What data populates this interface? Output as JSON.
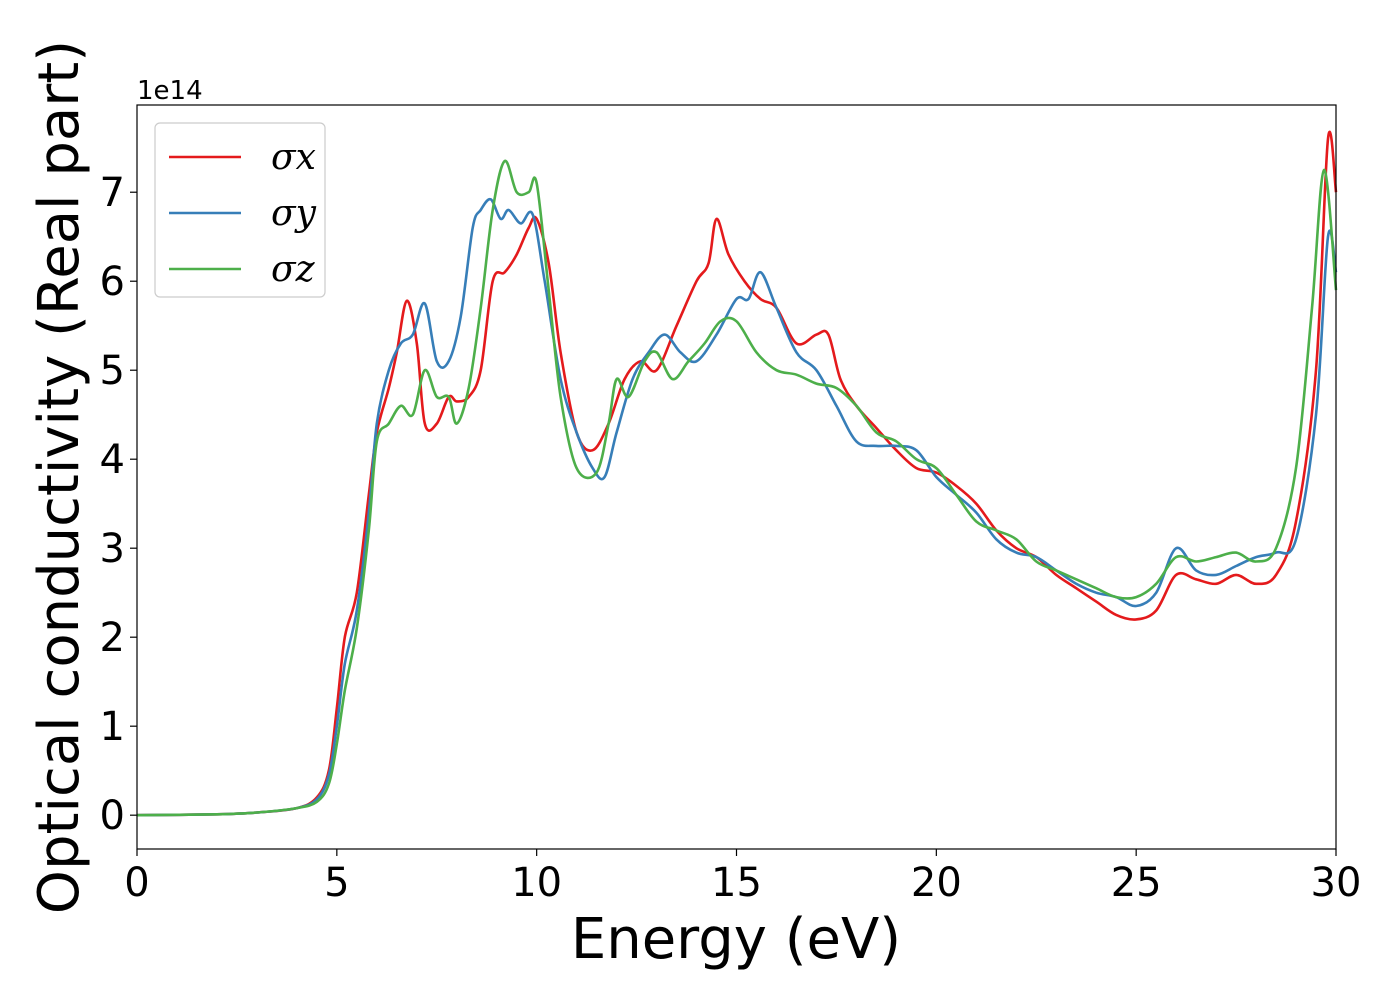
{
  "chart_data": {
    "type": "line",
    "title": "",
    "xlabel": "Energy (eV)",
    "ylabel": "Optical conductivity (Real part)",
    "y_scale_label": "1e14",
    "xlim": [
      0,
      30
    ],
    "ylim": [
      -0.38,
      7.98
    ],
    "xticks": [
      "0",
      "5",
      "10",
      "15",
      "20",
      "25",
      "30"
    ],
    "xtick_values": [
      0,
      5,
      10,
      15,
      20,
      25,
      30
    ],
    "yticks": [
      "0",
      "1",
      "2",
      "3",
      "4",
      "5",
      "6",
      "7"
    ],
    "ytick_values": [
      0,
      1,
      2,
      3,
      4,
      5,
      6,
      7
    ],
    "grid": false,
    "legend_position": "upper-left",
    "series": [
      {
        "name": "σx",
        "color": "#e41a1c",
        "x": [
          0,
          2,
          3,
          4,
          4.5,
          4.8,
          5.0,
          5.2,
          5.5,
          5.8,
          6.0,
          6.3,
          6.5,
          6.75,
          7.0,
          7.2,
          7.5,
          7.8,
          8.0,
          8.3,
          8.6,
          8.9,
          9.2,
          9.5,
          9.8,
          10.0,
          10.3,
          10.6,
          11.0,
          11.4,
          11.8,
          12.2,
          12.6,
          13.0,
          13.5,
          14.0,
          14.3,
          14.5,
          14.8,
          15.2,
          15.6,
          16.0,
          16.5,
          17.0,
          17.3,
          17.6,
          18.0,
          18.5,
          19.0,
          19.5,
          20.0,
          20.5,
          21.0,
          21.5,
          22.0,
          22.5,
          23.0,
          23.5,
          24.0,
          24.5,
          25.0,
          25.5,
          26.0,
          26.5,
          27.0,
          27.5,
          28.0,
          28.5,
          29.0,
          29.5,
          29.8,
          30.0
        ],
        "y": [
          0,
          0.01,
          0.03,
          0.08,
          0.2,
          0.5,
          1.2,
          2.0,
          2.5,
          3.6,
          4.3,
          4.8,
          5.2,
          5.78,
          5.3,
          4.4,
          4.4,
          4.7,
          4.65,
          4.7,
          5.0,
          6.0,
          6.1,
          6.3,
          6.6,
          6.7,
          6.2,
          5.2,
          4.3,
          4.1,
          4.4,
          4.9,
          5.1,
          5.0,
          5.5,
          6.0,
          6.2,
          6.7,
          6.3,
          6.0,
          5.8,
          5.7,
          5.3,
          5.4,
          5.4,
          4.9,
          4.6,
          4.35,
          4.1,
          3.9,
          3.85,
          3.7,
          3.5,
          3.2,
          3.0,
          2.9,
          2.7,
          2.55,
          2.4,
          2.25,
          2.2,
          2.3,
          2.7,
          2.65,
          2.6,
          2.7,
          2.6,
          2.7,
          3.3,
          5.0,
          7.6,
          7.0
        ]
      },
      {
        "name": "σy",
        "color": "#377eb8",
        "x": [
          0,
          2,
          3,
          4,
          4.5,
          4.8,
          5.0,
          5.2,
          5.5,
          5.8,
          6.0,
          6.3,
          6.6,
          6.9,
          7.2,
          7.5,
          7.8,
          8.1,
          8.4,
          8.6,
          8.85,
          9.1,
          9.3,
          9.6,
          9.9,
          10.2,
          10.6,
          11.0,
          11.4,
          11.7,
          12.0,
          12.4,
          12.8,
          13.2,
          13.6,
          14.0,
          14.5,
          15.0,
          15.3,
          15.6,
          16.0,
          16.5,
          17.0,
          17.5,
          18.0,
          18.5,
          19.0,
          19.5,
          20.0,
          20.5,
          21.0,
          21.5,
          22.0,
          22.5,
          23.0,
          23.5,
          24.0,
          24.5,
          25.0,
          25.5,
          26.0,
          26.5,
          27.0,
          27.5,
          28.0,
          28.5,
          29.0,
          29.5,
          29.8,
          30.0
        ],
        "y": [
          0,
          0.01,
          0.03,
          0.08,
          0.18,
          0.45,
          1.0,
          1.7,
          2.3,
          3.4,
          4.4,
          5.0,
          5.3,
          5.4,
          5.75,
          5.1,
          5.1,
          5.6,
          6.6,
          6.8,
          6.92,
          6.7,
          6.8,
          6.65,
          6.75,
          6.0,
          4.9,
          4.3,
          3.9,
          3.8,
          4.3,
          4.9,
          5.2,
          5.4,
          5.2,
          5.1,
          5.4,
          5.8,
          5.8,
          6.1,
          5.7,
          5.2,
          5.0,
          4.6,
          4.2,
          4.15,
          4.15,
          4.1,
          3.8,
          3.6,
          3.4,
          3.1,
          2.95,
          2.9,
          2.75,
          2.6,
          2.5,
          2.45,
          2.35,
          2.5,
          3.0,
          2.75,
          2.7,
          2.8,
          2.9,
          2.95,
          3.1,
          4.5,
          6.5,
          6.1
        ]
      },
      {
        "name": "σz",
        "color": "#4daf4a",
        "x": [
          0,
          2,
          3,
          4,
          4.5,
          4.8,
          5.0,
          5.2,
          5.5,
          5.8,
          6.0,
          6.3,
          6.6,
          6.9,
          7.2,
          7.5,
          7.8,
          8.0,
          8.3,
          8.6,
          8.9,
          9.2,
          9.5,
          9.8,
          10.0,
          10.3,
          10.6,
          11.0,
          11.5,
          11.8,
          12.0,
          12.3,
          12.7,
          13.0,
          13.4,
          13.8,
          14.2,
          14.6,
          15.0,
          15.5,
          16.0,
          16.5,
          17.0,
          17.5,
          18.0,
          18.5,
          19.0,
          19.5,
          20.0,
          20.5,
          21.0,
          21.5,
          22.0,
          22.5,
          23.0,
          23.5,
          24.0,
          24.5,
          25.0,
          25.5,
          26.0,
          26.5,
          27.0,
          27.5,
          28.0,
          28.5,
          29.0,
          29.4,
          29.7,
          30.0
        ],
        "y": [
          0,
          0.01,
          0.03,
          0.08,
          0.15,
          0.35,
          0.8,
          1.4,
          2.1,
          3.2,
          4.2,
          4.4,
          4.6,
          4.5,
          5.0,
          4.7,
          4.7,
          4.4,
          4.8,
          5.7,
          6.8,
          7.35,
          7.0,
          7.0,
          7.1,
          5.9,
          4.7,
          3.9,
          3.85,
          4.4,
          4.9,
          4.7,
          5.1,
          5.2,
          4.9,
          5.1,
          5.3,
          5.55,
          5.55,
          5.2,
          5.0,
          4.95,
          4.85,
          4.8,
          4.6,
          4.3,
          4.2,
          4.0,
          3.9,
          3.6,
          3.3,
          3.2,
          3.1,
          2.85,
          2.75,
          2.65,
          2.55,
          2.45,
          2.45,
          2.6,
          2.9,
          2.85,
          2.9,
          2.95,
          2.85,
          3.0,
          3.9,
          5.7,
          7.25,
          5.9
        ]
      }
    ]
  }
}
